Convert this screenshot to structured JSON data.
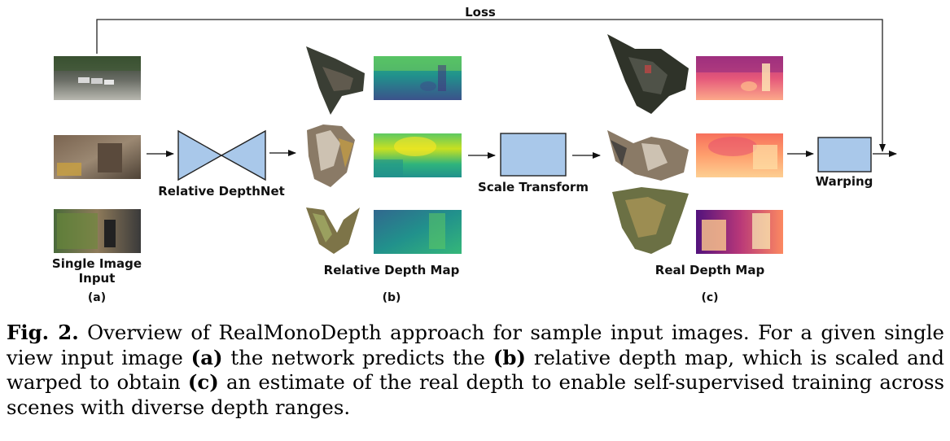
{
  "figure": {
    "loss_label": "Loss",
    "depthnet_label": "Relative DepthNet",
    "scale_label": "Scale Transform",
    "warping_label": "Warping",
    "input_label_line1": "Single Image",
    "input_label_line2": "Input",
    "relative_label": "Relative Depth Map",
    "real_label": "Real Depth Map",
    "sub_a": "(a)",
    "sub_b": "(b)",
    "sub_c": "(c)",
    "box_color": "#a9c8ea",
    "relative_colormap": "viridis",
    "real_colormap": "magma"
  },
  "caption": {
    "fig_label": "Fig. 2.",
    "t1": " Overview of RealMonoDepth approach for sample input images. For a given single view input image ",
    "a": "(a)",
    "t2": " the network predicts the ",
    "b": "(b)",
    "t3": " relative depth map, which is scaled and warped to obtain ",
    "c": "(c)",
    "t4": " an estimate of the real depth to enable self-supervised training across scenes with diverse depth ranges."
  }
}
